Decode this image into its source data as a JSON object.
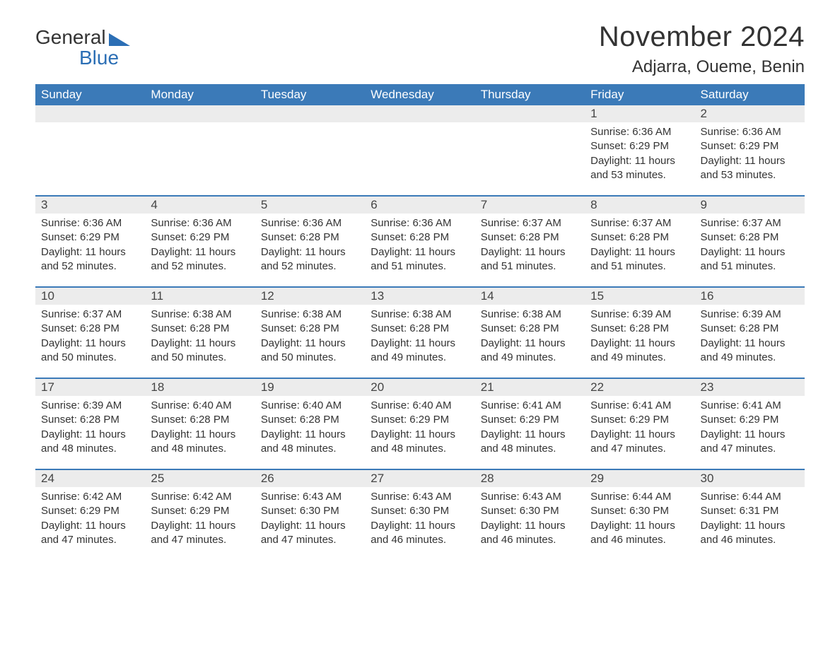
{
  "logo": {
    "line1": "General",
    "line2": "Blue"
  },
  "title": "November 2024",
  "location": "Adjarra, Oueme, Benin",
  "colors": {
    "header_bg": "#3b7ab8",
    "header_text": "#ffffff",
    "daynum_bg": "#ececec",
    "border_top": "#3b7ab8",
    "body_text": "#333333",
    "logo_blue": "#2c6fb5"
  },
  "day_headers": [
    "Sunday",
    "Monday",
    "Tuesday",
    "Wednesday",
    "Thursday",
    "Friday",
    "Saturday"
  ],
  "weeks": [
    [
      null,
      null,
      null,
      null,
      null,
      {
        "n": "1",
        "sunrise": "6:36 AM",
        "sunset": "6:29 PM",
        "daylight": "11 hours and 53 minutes."
      },
      {
        "n": "2",
        "sunrise": "6:36 AM",
        "sunset": "6:29 PM",
        "daylight": "11 hours and 53 minutes."
      }
    ],
    [
      {
        "n": "3",
        "sunrise": "6:36 AM",
        "sunset": "6:29 PM",
        "daylight": "11 hours and 52 minutes."
      },
      {
        "n": "4",
        "sunrise": "6:36 AM",
        "sunset": "6:29 PM",
        "daylight": "11 hours and 52 minutes."
      },
      {
        "n": "5",
        "sunrise": "6:36 AM",
        "sunset": "6:28 PM",
        "daylight": "11 hours and 52 minutes."
      },
      {
        "n": "6",
        "sunrise": "6:36 AM",
        "sunset": "6:28 PM",
        "daylight": "11 hours and 51 minutes."
      },
      {
        "n": "7",
        "sunrise": "6:37 AM",
        "sunset": "6:28 PM",
        "daylight": "11 hours and 51 minutes."
      },
      {
        "n": "8",
        "sunrise": "6:37 AM",
        "sunset": "6:28 PM",
        "daylight": "11 hours and 51 minutes."
      },
      {
        "n": "9",
        "sunrise": "6:37 AM",
        "sunset": "6:28 PM",
        "daylight": "11 hours and 51 minutes."
      }
    ],
    [
      {
        "n": "10",
        "sunrise": "6:37 AM",
        "sunset": "6:28 PM",
        "daylight": "11 hours and 50 minutes."
      },
      {
        "n": "11",
        "sunrise": "6:38 AM",
        "sunset": "6:28 PM",
        "daylight": "11 hours and 50 minutes."
      },
      {
        "n": "12",
        "sunrise": "6:38 AM",
        "sunset": "6:28 PM",
        "daylight": "11 hours and 50 minutes."
      },
      {
        "n": "13",
        "sunrise": "6:38 AM",
        "sunset": "6:28 PM",
        "daylight": "11 hours and 49 minutes."
      },
      {
        "n": "14",
        "sunrise": "6:38 AM",
        "sunset": "6:28 PM",
        "daylight": "11 hours and 49 minutes."
      },
      {
        "n": "15",
        "sunrise": "6:39 AM",
        "sunset": "6:28 PM",
        "daylight": "11 hours and 49 minutes."
      },
      {
        "n": "16",
        "sunrise": "6:39 AM",
        "sunset": "6:28 PM",
        "daylight": "11 hours and 49 minutes."
      }
    ],
    [
      {
        "n": "17",
        "sunrise": "6:39 AM",
        "sunset": "6:28 PM",
        "daylight": "11 hours and 48 minutes."
      },
      {
        "n": "18",
        "sunrise": "6:40 AM",
        "sunset": "6:28 PM",
        "daylight": "11 hours and 48 minutes."
      },
      {
        "n": "19",
        "sunrise": "6:40 AM",
        "sunset": "6:28 PM",
        "daylight": "11 hours and 48 minutes."
      },
      {
        "n": "20",
        "sunrise": "6:40 AM",
        "sunset": "6:29 PM",
        "daylight": "11 hours and 48 minutes."
      },
      {
        "n": "21",
        "sunrise": "6:41 AM",
        "sunset": "6:29 PM",
        "daylight": "11 hours and 48 minutes."
      },
      {
        "n": "22",
        "sunrise": "6:41 AM",
        "sunset": "6:29 PM",
        "daylight": "11 hours and 47 minutes."
      },
      {
        "n": "23",
        "sunrise": "6:41 AM",
        "sunset": "6:29 PM",
        "daylight": "11 hours and 47 minutes."
      }
    ],
    [
      {
        "n": "24",
        "sunrise": "6:42 AM",
        "sunset": "6:29 PM",
        "daylight": "11 hours and 47 minutes."
      },
      {
        "n": "25",
        "sunrise": "6:42 AM",
        "sunset": "6:29 PM",
        "daylight": "11 hours and 47 minutes."
      },
      {
        "n": "26",
        "sunrise": "6:43 AM",
        "sunset": "6:30 PM",
        "daylight": "11 hours and 47 minutes."
      },
      {
        "n": "27",
        "sunrise": "6:43 AM",
        "sunset": "6:30 PM",
        "daylight": "11 hours and 46 minutes."
      },
      {
        "n": "28",
        "sunrise": "6:43 AM",
        "sunset": "6:30 PM",
        "daylight": "11 hours and 46 minutes."
      },
      {
        "n": "29",
        "sunrise": "6:44 AM",
        "sunset": "6:30 PM",
        "daylight": "11 hours and 46 minutes."
      },
      {
        "n": "30",
        "sunrise": "6:44 AM",
        "sunset": "6:31 PM",
        "daylight": "11 hours and 46 minutes."
      }
    ]
  ],
  "labels": {
    "sunrise": "Sunrise:",
    "sunset": "Sunset:",
    "daylight": "Daylight:"
  }
}
